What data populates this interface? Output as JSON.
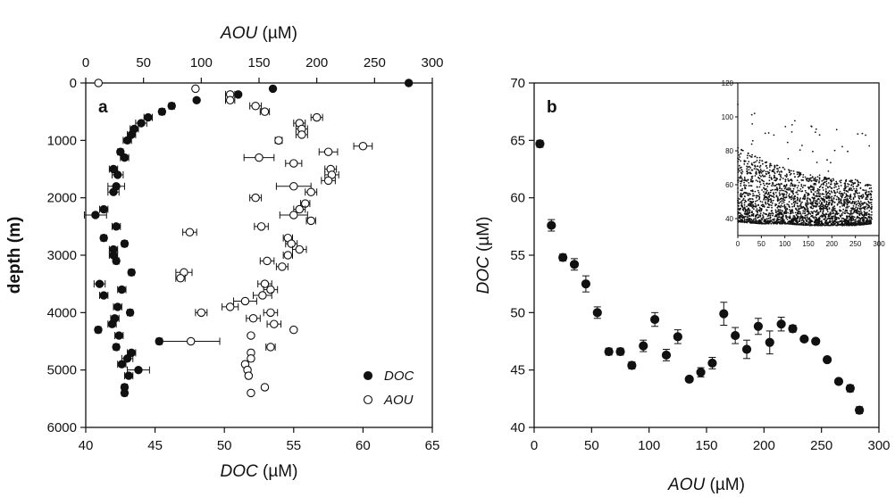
{
  "colors": {
    "ink": "#111111",
    "paper": "#ffffff"
  },
  "chart_data": [
    {
      "panel": "a",
      "type": "scatter",
      "bottom_axis": {
        "title_italic": "DOC",
        "title_unit": " (µM)",
        "range": [
          40,
          65
        ],
        "ticks": [
          "40",
          "45",
          "50",
          "55",
          "60",
          "65"
        ]
      },
      "top_axis": {
        "title_italic": "AOU",
        "title_unit": " (µM)",
        "range": [
          0,
          300
        ],
        "ticks": [
          "0",
          "50",
          "100",
          "150",
          "200",
          "250",
          "300"
        ]
      },
      "y_axis": {
        "title": "depth (m)",
        "range": [
          0,
          6000
        ],
        "inverted": true,
        "ticks": [
          "0",
          "1000",
          "2000",
          "3000",
          "4000",
          "5000",
          "6000"
        ]
      },
      "legend": [
        {
          "label": "DOC",
          "marker": "filled-circle"
        },
        {
          "label": "AOU",
          "marker": "open-circle"
        }
      ],
      "legend_position": "bottom-right",
      "series": [
        {
          "name": "DOC",
          "marker": "filled-circle",
          "points": [
            [
              63.3,
              0,
              0
            ],
            [
              53.5,
              100,
              0
            ],
            [
              51.0,
              200,
              0
            ],
            [
              48.0,
              300,
              0
            ],
            [
              46.2,
              400,
              0.2
            ],
            [
              45.5,
              500,
              0.2
            ],
            [
              44.5,
              600,
              0.3
            ],
            [
              44.0,
              700,
              0.4
            ],
            [
              43.5,
              800,
              0.3
            ],
            [
              43.3,
              900,
              0.3
            ],
            [
              43.0,
              1000,
              0.3
            ],
            [
              42.5,
              1200,
              0.2
            ],
            [
              42.8,
              1300,
              0.3
            ],
            [
              42.0,
              1500,
              0.3
            ],
            [
              42.3,
              1600,
              0.4
            ],
            [
              42.2,
              1800,
              0.6
            ],
            [
              42.0,
              1900,
              0.4
            ],
            [
              41.3,
              2200,
              0.3
            ],
            [
              40.7,
              2300,
              0.8
            ],
            [
              42.2,
              2500,
              0.3
            ],
            [
              41.3,
              2700,
              0.2
            ],
            [
              42.8,
              2800,
              0.2
            ],
            [
              42.0,
              2900,
              0.3
            ],
            [
              42.0,
              3000,
              0.3
            ],
            [
              42.2,
              3100,
              0.2
            ],
            [
              43.3,
              3300,
              0.2
            ],
            [
              41.0,
              3500,
              0.4
            ],
            [
              42.6,
              3600,
              0.3
            ],
            [
              41.3,
              3700,
              0.3
            ],
            [
              42.3,
              3900,
              0.3
            ],
            [
              43.2,
              4000,
              0.2
            ],
            [
              42.1,
              4100,
              0.3
            ],
            [
              41.9,
              4200,
              0.3
            ],
            [
              40.9,
              4300,
              0.2
            ],
            [
              42.4,
              4400,
              0.3
            ],
            [
              45.3,
              4500,
              0.2
            ],
            [
              42.2,
              4600,
              0.2
            ],
            [
              43.3,
              4700,
              0.3
            ],
            [
              43.0,
              4800,
              0.4
            ],
            [
              42.6,
              4900,
              0.3
            ],
            [
              43.8,
              5000,
              0.8
            ],
            [
              43.1,
              5100,
              0.3
            ],
            [
              42.8,
              5300,
              0.2
            ],
            [
              42.8,
              5400,
              0.2
            ]
          ]
        },
        {
          "name": "AOU",
          "marker": "open-circle",
          "points": [
            [
              11,
              0,
              0
            ],
            [
              95,
              100,
              0
            ],
            [
              125,
              200,
              4
            ],
            [
              125,
              300,
              4
            ],
            [
              147,
              400,
              5
            ],
            [
              155,
              500,
              4
            ],
            [
              200,
              600,
              5
            ],
            [
              185,
              700,
              5
            ],
            [
              187,
              800,
              5
            ],
            [
              187,
              900,
              5
            ],
            [
              167,
              1000,
              3
            ],
            [
              240,
              1100,
              8
            ],
            [
              210,
              1200,
              8
            ],
            [
              150,
              1300,
              13
            ],
            [
              180,
              1400,
              7
            ],
            [
              212,
              1500,
              5
            ],
            [
              213,
              1600,
              6
            ],
            [
              210,
              1700,
              6
            ],
            [
              180,
              1800,
              15
            ],
            [
              195,
              1900,
              5
            ],
            [
              147,
              2000,
              5
            ],
            [
              190,
              2100,
              4
            ],
            [
              185,
              2200,
              5
            ],
            [
              180,
              2300,
              12
            ],
            [
              195,
              2400,
              4
            ],
            [
              152,
              2500,
              6
            ],
            [
              90,
              2600,
              6
            ],
            [
              175,
              2700,
              4
            ],
            [
              178,
              2800,
              5
            ],
            [
              185,
              2900,
              6
            ],
            [
              175,
              3000,
              4
            ],
            [
              157,
              3100,
              6
            ],
            [
              170,
              3200,
              5
            ],
            [
              85,
              3300,
              7
            ],
            [
              82,
              3400,
              4
            ],
            [
              155,
              3500,
              6
            ],
            [
              160,
              3600,
              6
            ],
            [
              153,
              3700,
              8
            ],
            [
              138,
              3800,
              10
            ],
            [
              125,
              3900,
              7
            ],
            [
              100,
              4000,
              5
            ],
            [
              160,
              4000,
              6
            ],
            [
              145,
              4100,
              6
            ],
            [
              163,
              4200,
              6
            ],
            [
              180,
              4300,
              0
            ],
            [
              143,
              4400,
              0
            ],
            [
              91,
              4500,
              25
            ],
            [
              160,
              4600,
              4
            ],
            [
              143,
              4700,
              2
            ],
            [
              143,
              4800,
              2
            ],
            [
              138,
              4900,
              2
            ],
            [
              140,
              5000,
              2
            ],
            [
              141,
              5100,
              2
            ],
            [
              155,
              5300,
              0
            ],
            [
              143,
              5400,
              0
            ]
          ]
        }
      ]
    },
    {
      "panel": "b",
      "type": "scatter",
      "x_axis": {
        "title_italic": "AOU",
        "title_unit": " (µM)",
        "range": [
          0,
          300
        ],
        "ticks": [
          "0",
          "50",
          "100",
          "150",
          "200",
          "250",
          "300"
        ]
      },
      "y_axis": {
        "title_italic": "DOC",
        "title_unit": " (µM)",
        "range": [
          40,
          70
        ],
        "ticks": [
          "40",
          "45",
          "50",
          "55",
          "60",
          "65",
          "70"
        ]
      },
      "series": [
        {
          "marker": "filled-circle",
          "points": [
            [
              5,
              64.7,
              0.3
            ],
            [
              15,
              57.6,
              0.5
            ],
            [
              25,
              54.8,
              0.3
            ],
            [
              35,
              54.2,
              0.5
            ],
            [
              45,
              52.5,
              0.7
            ],
            [
              55,
              50.0,
              0.5
            ],
            [
              65,
              46.6,
              0.3
            ],
            [
              75,
              46.6,
              0.3
            ],
            [
              85,
              45.4,
              0.3
            ],
            [
              95,
              47.1,
              0.5
            ],
            [
              105,
              49.4,
              0.6
            ],
            [
              115,
              46.3,
              0.5
            ],
            [
              125,
              47.9,
              0.6
            ],
            [
              135,
              44.2,
              0.2
            ],
            [
              145,
              44.8,
              0.4
            ],
            [
              155,
              45.6,
              0.5
            ],
            [
              165,
              49.9,
              1.0
            ],
            [
              175,
              48.0,
              0.7
            ],
            [
              185,
              46.8,
              0.8
            ],
            [
              195,
              48.8,
              0.7
            ],
            [
              205,
              47.4,
              1.0
            ],
            [
              215,
              49.0,
              0.6
            ],
            [
              225,
              48.6,
              0.3
            ],
            [
              235,
              47.7,
              0.2
            ],
            [
              245,
              47.5,
              0.2
            ],
            [
              255,
              45.9,
              0.2
            ],
            [
              265,
              44.0,
              0.2
            ],
            [
              275,
              43.4,
              0.3
            ],
            [
              283,
              41.5,
              0.3
            ]
          ]
        }
      ],
      "inset": {
        "type": "scatter",
        "x_range": [
          0,
          300
        ],
        "y_range": [
          30,
          120
        ],
        "x_ticks": [
          "0",
          "50",
          "100",
          "150",
          "200",
          "250",
          "300"
        ],
        "y_ticks": [
          "40",
          "60",
          "80",
          "100",
          "120"
        ],
        "point_density": "thousands of individual samples; dense band from ~40 to ~70 µM, upper envelope declining from ~80 µM at low AOU to ~60 µM at 280 µM",
        "envelope": {
          "x": [
            0,
            50,
            100,
            150,
            200,
            250,
            285
          ],
          "upper": [
            82,
            75,
            70,
            66,
            64,
            63,
            60
          ],
          "lower": [
            38,
            37,
            37,
            36,
            36,
            36,
            37
          ]
        }
      }
    }
  ]
}
